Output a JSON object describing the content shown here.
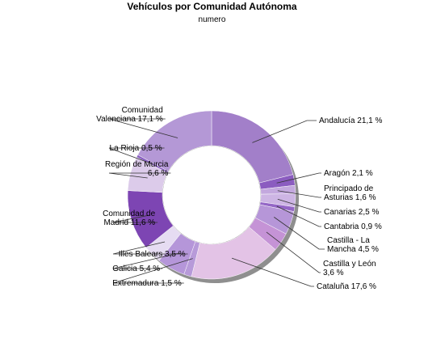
{
  "chart_data": {
    "type": "pie",
    "donut": true,
    "title": "Vehículos por Comunidad Autónoma",
    "subtitle": "numero",
    "legend": "none",
    "slices": [
      {
        "lines": [
          "Andalucía 21,1 %"
        ],
        "value": 21.1,
        "color": "#a27fc9",
        "side": "right"
      },
      {
        "lines": [
          "Aragón 2,1 %"
        ],
        "value": 2.1,
        "color": "#8b5cc0",
        "side": "right"
      },
      {
        "lines": [
          "Principado de",
          "Asturias 1,6 %"
        ],
        "value": 1.6,
        "color": "#c3a8de",
        "side": "right"
      },
      {
        "lines": [
          "Canarias 2,5 %"
        ],
        "value": 2.5,
        "color": "#cdb5e4",
        "side": "right"
      },
      {
        "lines": [
          "Cantabria 0,9 %"
        ],
        "value": 0.9,
        "color": "#9466c6",
        "side": "right"
      },
      {
        "lines": [
          "Castilla - La",
          "Mancha 4,5 %"
        ],
        "value": 4.5,
        "color": "#b696d8",
        "side": "right"
      },
      {
        "lines": [
          "Castilla y León",
          "3,6 %"
        ],
        "value": 3.6,
        "color": "#c593d6",
        "side": "right"
      },
      {
        "lines": [
          "Cataluña 17,6 %"
        ],
        "value": 17.6,
        "color": "#e3c3e6",
        "side": "right"
      },
      {
        "lines": [
          "Extremadura 1,5 %"
        ],
        "value": 1.5,
        "color": "#b79ad9",
        "side": "left"
      },
      {
        "lines": [
          "Galicia 5,4 %"
        ],
        "value": 5.4,
        "color": "#b596d9",
        "side": "left"
      },
      {
        "lines": [
          "Illes Balears 3,5 %"
        ],
        "value": 3.5,
        "color": "#e6dcf2",
        "side": "left"
      },
      {
        "lines": [
          "Comunidad de",
          "Madrid 11,6 %"
        ],
        "value": 11.6,
        "color": "#7d45b3",
        "side": "left"
      },
      {
        "lines": [
          "Región de Murcia",
          "6,6 %"
        ],
        "value": 6.6,
        "color": "#dccbea",
        "side": "left"
      },
      {
        "lines": [
          "La Rioja 0,5 %"
        ],
        "value": 0.5,
        "color": "#8b61c2",
        "side": "left"
      },
      {
        "lines": [
          "Comunidad",
          "Valenciana 17,1 %"
        ],
        "value": 17.1,
        "color": "#b498d6",
        "side": "left"
      }
    ]
  }
}
